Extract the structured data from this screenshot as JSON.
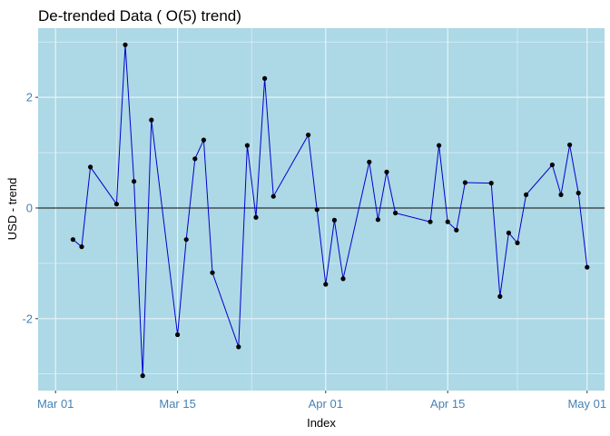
{
  "chart_data": {
    "type": "line",
    "title": "De-trended Data ( O(5) trend)",
    "xlabel": "Index",
    "ylabel": "USD - trend",
    "x_tick_labels": [
      "Mar 01",
      "Mar 15",
      "Apr 01",
      "Apr 15",
      "May 01"
    ],
    "x_tick_dates": [
      "2024-03-01",
      "2024-03-15",
      "2024-04-01",
      "2024-04-15",
      "2024-05-01"
    ],
    "y_ticks": [
      -2,
      0,
      2
    ],
    "y_tick_labels": [
      "-2",
      "0",
      "2"
    ],
    "xlim": [
      "2024-02-28",
      "2024-05-03"
    ],
    "ylim": [
      -3.3,
      3.25
    ],
    "reference_line_y": 0,
    "grid": true,
    "colors": {
      "panel": "#ADD8E6",
      "grid": "#E8F3F8",
      "line": "#0000CD",
      "points": "#000000",
      "reference": "#000000",
      "tick_text": "#4682B4"
    },
    "series": [
      {
        "points": [
          {
            "x": "2024-03-03",
            "y": -0.57
          },
          {
            "x": "2024-03-04",
            "y": -0.7
          },
          {
            "x": "2024-03-05",
            "y": 0.74
          },
          {
            "x": "2024-03-08",
            "y": 0.07
          },
          {
            "x": "2024-03-09",
            "y": 2.95
          },
          {
            "x": "2024-03-10",
            "y": 0.48
          },
          {
            "x": "2024-03-11",
            "y": -3.03
          },
          {
            "x": "2024-03-12",
            "y": 1.59
          },
          {
            "x": "2024-03-15",
            "y": -2.29
          },
          {
            "x": "2024-03-16",
            "y": -0.57
          },
          {
            "x": "2024-03-17",
            "y": 0.89
          },
          {
            "x": "2024-03-18",
            "y": 1.23
          },
          {
            "x": "2024-03-19",
            "y": -1.17
          },
          {
            "x": "2024-03-22",
            "y": -2.51
          },
          {
            "x": "2024-03-23",
            "y": 1.13
          },
          {
            "x": "2024-03-24",
            "y": -0.17
          },
          {
            "x": "2024-03-25",
            "y": 2.34
          },
          {
            "x": "2024-03-26",
            "y": 0.21
          },
          {
            "x": "2024-03-30",
            "y": 1.32
          },
          {
            "x": "2024-03-31",
            "y": -0.03
          },
          {
            "x": "2024-04-01",
            "y": -1.38
          },
          {
            "x": "2024-04-02",
            "y": -0.22
          },
          {
            "x": "2024-04-03",
            "y": -1.28
          },
          {
            "x": "2024-04-06",
            "y": 0.83
          },
          {
            "x": "2024-04-07",
            "y": -0.21
          },
          {
            "x": "2024-04-08",
            "y": 0.65
          },
          {
            "x": "2024-04-09",
            "y": -0.09
          },
          {
            "x": "2024-04-13",
            "y": -0.25
          },
          {
            "x": "2024-04-14",
            "y": 1.13
          },
          {
            "x": "2024-04-15",
            "y": -0.25
          },
          {
            "x": "2024-04-16",
            "y": -0.4
          },
          {
            "x": "2024-04-17",
            "y": 0.46
          },
          {
            "x": "2024-04-20",
            "y": 0.45
          },
          {
            "x": "2024-04-21",
            "y": -1.6
          },
          {
            "x": "2024-04-22",
            "y": -0.45
          },
          {
            "x": "2024-04-23",
            "y": -0.63
          },
          {
            "x": "2024-04-24",
            "y": 0.24
          },
          {
            "x": "2024-04-27",
            "y": 0.78
          },
          {
            "x": "2024-04-28",
            "y": 0.24
          },
          {
            "x": "2024-04-29",
            "y": 1.14
          },
          {
            "x": "2024-04-30",
            "y": 0.27
          },
          {
            "x": "2024-05-01",
            "y": -1.07
          }
        ]
      }
    ]
  }
}
